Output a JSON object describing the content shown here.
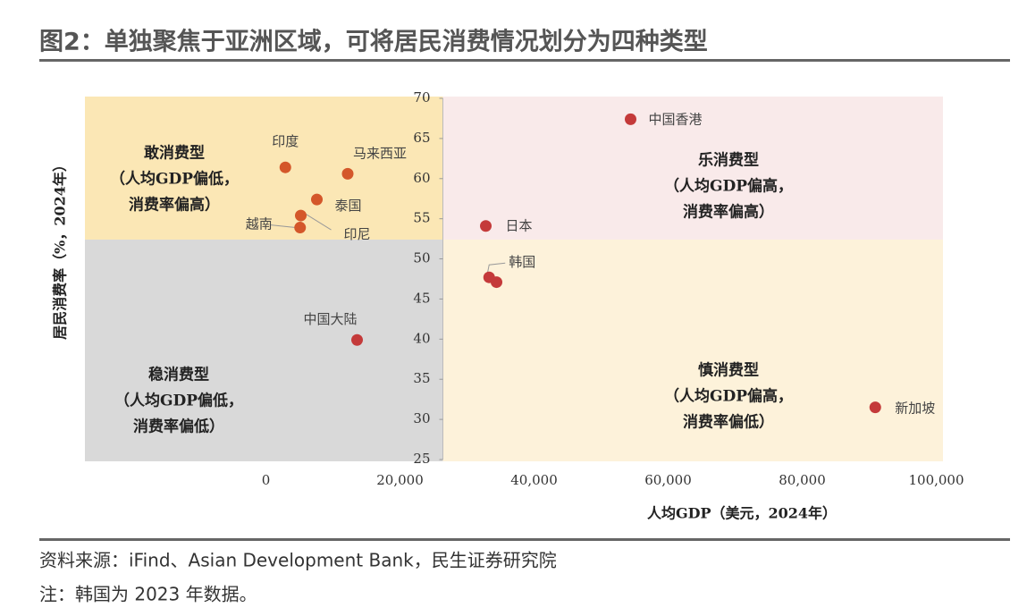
{
  "chart_data": {
    "type": "scatter",
    "title": "图2：单独聚焦于亚洲区域，可将居民消费情况划分为四种类型",
    "x_label": "人均GDP（美元，2024年）",
    "y_label": "居民消费率（%，2024年）",
    "x": [
      2900,
      12200,
      7600,
      5200,
      5100,
      32800,
      54400,
      33300,
      34400,
      13600,
      90900
    ],
    "values": [
      61.4,
      60.6,
      57.4,
      55.4,
      53.9,
      54.1,
      67.4,
      47.7,
      47.1,
      39.9,
      31.5
    ],
    "point_labels": [
      "印度",
      "马来西亚",
      "泰国",
      "印尼",
      "越南",
      "日本",
      "中国香港",
      "韩国",
      null,
      "中国大陆",
      "新加坡"
    ],
    "colors": [
      "#d4572a",
      "#d4572a",
      "#d4572a",
      "#d4572a",
      "#d4572a",
      "#c43a3a",
      "#c43a3a",
      "#c43a3a",
      "#c43a3a",
      "#c43a3a",
      "#c43a3a"
    ],
    "xlim": [
      -27000,
      101000
    ],
    "ylim": [
      25,
      70
    ],
    "xticks": [
      0,
      {
        "value": 20000,
        "label": "20,000"
      },
      {
        "value": 40000,
        "label": "40,000"
      },
      {
        "value": 60000,
        "label": "60,000"
      },
      {
        "value": 80000,
        "label": "80,000"
      },
      {
        "value": 100000,
        "label": "100,000"
      }
    ],
    "yticks": [
      25,
      30,
      35,
      40,
      45,
      50,
      55,
      60,
      65,
      70
    ],
    "divider_x": 26400,
    "divider_y": 52.4,
    "quadrants": [
      {
        "lines": [
          "敢消费型",
          "（人均GDP偏低，",
          "消费率偏高）"
        ],
        "color": "#fbe7b5"
      },
      {
        "lines": [
          "乐消费型",
          "（人均GDP偏高，",
          "消费率偏高）"
        ],
        "color": "#f9eaea"
      },
      {
        "lines": [
          "稳消费型",
          "（人均GDP偏低，",
          "消费率偏低）"
        ],
        "color": "#d9d9d9"
      },
      {
        "lines": [
          "慎消费型",
          "（人均GDP偏高，",
          "消费率偏低）"
        ],
        "color": "#fdf2da"
      }
    ],
    "notes": [
      "资料来源：iFind、Asian Development Bank，民生证券研究院",
      "注：韩国为 2023 年数据。"
    ]
  }
}
